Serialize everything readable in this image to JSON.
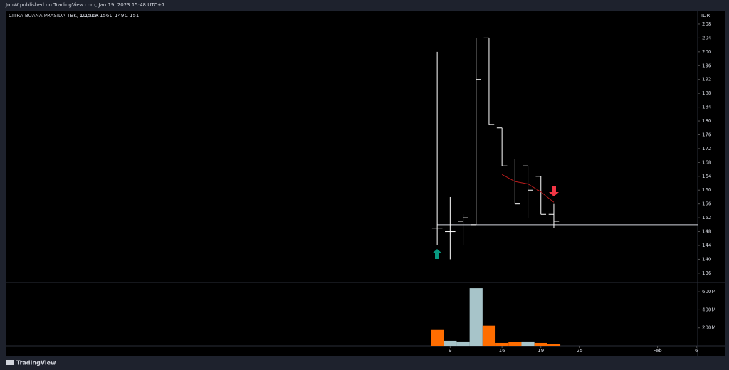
{
  "header": {
    "publisher": "JonW published on TradingView.com, Jan 19, 2023 15:48 UTC+7",
    "footer": "TradingView"
  },
  "chart_data": [
    {
      "type": "ohlc",
      "legend": "CITRA BUANA PRASIDA TBK, 1D, IDX",
      "legend_values": [
        "O",
        "153",
        "H",
        "156",
        "L",
        "149",
        "C",
        "151"
      ],
      "currency": "IDR",
      "color": "#ffffff",
      "categories": [
        null,
        "9",
        null,
        null,
        null,
        "16",
        null,
        null,
        "19",
        null
      ],
      "open": [
        149,
        148,
        151,
        150,
        204,
        178,
        169,
        167,
        164,
        153
      ],
      "high": [
        200,
        158,
        153,
        204,
        204,
        178,
        169,
        167,
        164,
        156
      ],
      "low": [
        144,
        140,
        144,
        150,
        179,
        167,
        156,
        152,
        153,
        149
      ],
      "close": [
        149,
        148,
        152,
        192,
        179,
        167,
        156,
        160,
        153,
        151
      ],
      "ma": {
        "color": "#b71c1c",
        "values": [
          null,
          null,
          null,
          null,
          null,
          164.5,
          162.5,
          161.8,
          159.5,
          156.5
        ]
      },
      "hline": 150,
      "xlim": [
        -33.3,
        20.1
      ],
      "xticks": [
        {
          "value": 1,
          "label": "9"
        },
        {
          "value": 5,
          "label": "16"
        },
        {
          "value": 8,
          "label": "19"
        },
        {
          "value": 11,
          "label": "25"
        },
        {
          "value": 17,
          "label": "Feb"
        },
        {
          "value": 20,
          "label": "6"
        }
      ],
      "ylim": [
        133.3,
        211.9
      ],
      "yticks": [
        136,
        140,
        144,
        148,
        152,
        156,
        160,
        164,
        168,
        172,
        176,
        180,
        184,
        188,
        192,
        196,
        200,
        204,
        208
      ]
    },
    {
      "type": "bar",
      "name": "volume",
      "values": [
        176000000,
        56000000,
        48000000,
        640000000,
        224000000,
        32000000,
        40000000,
        48000000,
        32000000,
        16000000
      ],
      "colors": [
        "#ff6d00",
        "#a7c4c9",
        "#a7c4c9",
        "#a7c4c9",
        "#ff6d00",
        "#ff6d00",
        "#ff6d00",
        "#a7c4c9",
        "#ff6d00",
        "#ff6d00"
      ],
      "ylim": [
        0,
        704000000
      ],
      "yticks": [
        {
          "value": 200000000,
          "label": "200M"
        },
        {
          "value": 400000000,
          "label": "400M"
        },
        {
          "value": 600000000,
          "label": "600M"
        }
      ]
    }
  ]
}
